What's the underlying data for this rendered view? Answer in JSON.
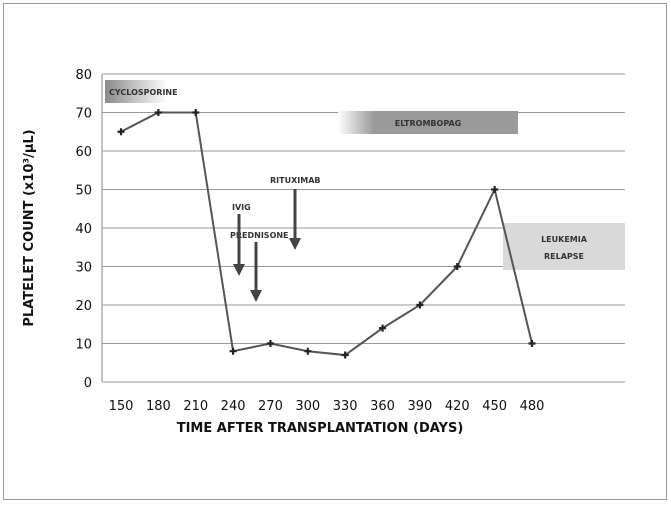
{
  "chart_data": {
    "type": "line",
    "title": "",
    "xlabel": "TIME AFTER TRANSPLANTATION (DAYS)",
    "ylabel": "PLATELET COUNT (x10³/µL)",
    "x": [
      150,
      180,
      210,
      240,
      270,
      300,
      330,
      360,
      390,
      420,
      450,
      480
    ],
    "values": [
      65,
      70,
      70,
      8,
      10,
      8,
      7,
      14,
      20,
      30,
      50,
      10
    ],
    "xticks": [
      "150",
      "180",
      "210",
      "240",
      "270",
      "300",
      "330",
      "360",
      "390",
      "420",
      "450",
      "480"
    ],
    "yticks": [
      "0",
      "10",
      "20",
      "30",
      "40",
      "50",
      "60",
      "70",
      "80"
    ],
    "ylim": [
      0,
      80
    ],
    "grid": "horizontal",
    "line_color": "#555555",
    "annotations": {
      "cyclosporine": "CYCLOSPORINE",
      "eltrombopag": "ELTROMBOPAG",
      "ivig": "IVIG",
      "prednisone": "PREDNISONE",
      "rituximab": "RITUXIMAB",
      "relapse_line1": "LEUKEMIA",
      "relapse_line2": "RELAPSE"
    }
  }
}
